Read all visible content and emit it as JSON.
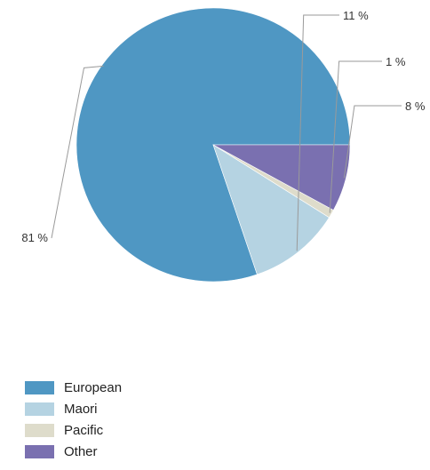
{
  "chart_data": {
    "type": "pie",
    "title": "",
    "slices": [
      {
        "name": "European",
        "value": 81,
        "label": "81 %",
        "color": "#4f97c3"
      },
      {
        "name": "Maori",
        "value": 11,
        "label": "11 %",
        "color": "#b5d3e2"
      },
      {
        "name": "Pacific",
        "value": 1,
        "label": "1 %",
        "color": "#dedccb"
      },
      {
        "name": "Other",
        "value": 8,
        "label": "8 %",
        "color": "#7a70b0"
      }
    ],
    "start_direction": "east",
    "direction": "counterclockwise",
    "legend_placement": "bottom-left"
  }
}
